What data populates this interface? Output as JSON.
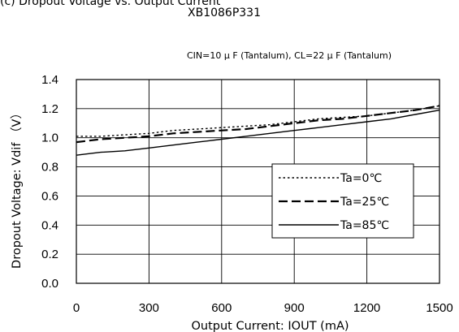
{
  "header": {
    "title": "(c) Dropout Voltage vs. Output Current",
    "subtitle": "XB1086P331",
    "conditions": "CIN=10 μ F (Tantalum), CL=22 μ F (Tantalum)"
  },
  "chart_data": {
    "type": "line",
    "title": "XB1086P331",
    "xlabel": "Output Current: IOUT (mA)",
    "ylabel": "Dropout Voltage: Vdif （V）",
    "xlim": [
      0,
      1500
    ],
    "ylim": [
      0.0,
      1.4
    ],
    "xticks": [
      "0",
      "300",
      "600",
      "900",
      "1200",
      "1500"
    ],
    "yticks": [
      "0.0",
      "0.2",
      "0.4",
      "0.6",
      "0.8",
      "1.0",
      "1.2",
      "1.4"
    ],
    "grid": true,
    "legend_position": "bottom-right",
    "series": [
      {
        "name": "Ta=0℃",
        "style": "dotted",
        "x": [
          0,
          100,
          200,
          300,
          400,
          500,
          600,
          700,
          800,
          900,
          1000,
          1100,
          1200,
          1300,
          1400,
          1500
        ],
        "y": [
          1.01,
          1.01,
          1.02,
          1.03,
          1.05,
          1.06,
          1.07,
          1.08,
          1.09,
          1.11,
          1.13,
          1.14,
          1.15,
          1.17,
          1.19,
          1.22
        ]
      },
      {
        "name": "Ta=25℃",
        "style": "dashed",
        "x": [
          0,
          100,
          200,
          300,
          400,
          500,
          600,
          700,
          800,
          900,
          1000,
          1100,
          1200,
          1300,
          1400,
          1500
        ],
        "y": [
          0.97,
          0.99,
          1.0,
          1.01,
          1.03,
          1.04,
          1.05,
          1.06,
          1.08,
          1.1,
          1.12,
          1.13,
          1.15,
          1.17,
          1.19,
          1.22
        ]
      },
      {
        "name": "Ta=85℃",
        "style": "solid",
        "x": [
          0,
          100,
          200,
          300,
          400,
          500,
          600,
          700,
          800,
          900,
          1000,
          1100,
          1200,
          1300,
          1400,
          1500
        ],
        "y": [
          0.88,
          0.9,
          0.91,
          0.93,
          0.95,
          0.97,
          0.99,
          1.01,
          1.03,
          1.05,
          1.07,
          1.09,
          1.11,
          1.13,
          1.16,
          1.19
        ]
      }
    ]
  }
}
